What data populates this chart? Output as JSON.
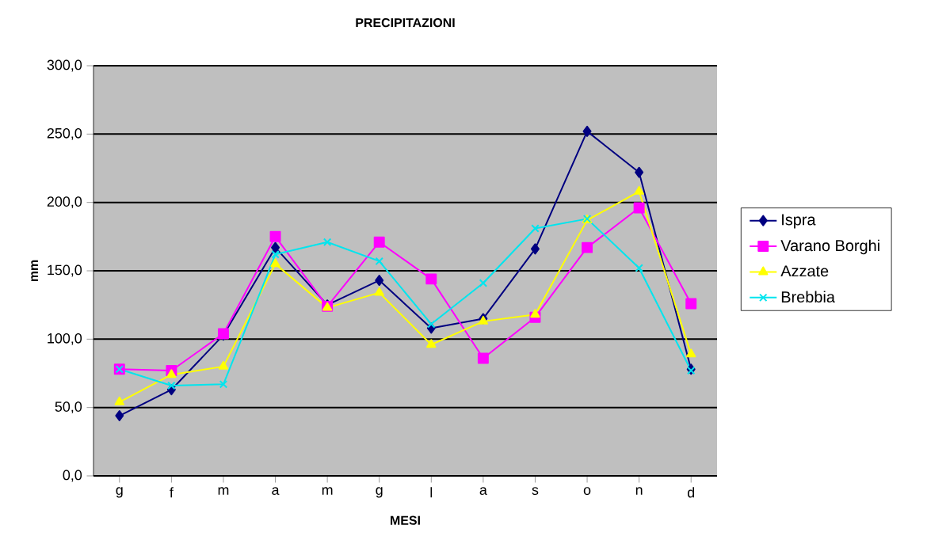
{
  "chart_data": {
    "type": "line",
    "title": "PRECIPITAZIONI",
    "xlabel": "MESI",
    "ylabel": "mm",
    "categories": [
      "g",
      "f",
      "m",
      "a",
      "m",
      "g",
      "l",
      "a",
      "s",
      "o",
      "n",
      "d"
    ],
    "series": [
      {
        "name": "Ispra",
        "color": "#000080",
        "marker": "diamond",
        "values": [
          44,
          63,
          103,
          167,
          125,
          143,
          108,
          115,
          166,
          252,
          222,
          78
        ]
      },
      {
        "name": "Varano Borghi",
        "color": "#ff00ff",
        "marker": "square",
        "values": [
          78,
          77,
          104,
          175,
          124,
          171,
          144,
          86,
          116,
          167,
          196,
          126
        ]
      },
      {
        "name": "Azzate",
        "color": "#ffff00",
        "marker": "triangle",
        "values": [
          54,
          74,
          80,
          155,
          123,
          134,
          96,
          113,
          118,
          187,
          208,
          89
        ]
      },
      {
        "name": "Brebbia",
        "color": "#00e5ee",
        "marker": "cross",
        "values": [
          78,
          66,
          67,
          162,
          171,
          157,
          111,
          141,
          181,
          188,
          152,
          77
        ]
      }
    ],
    "ylim": [
      0,
      300
    ],
    "yticks": [
      {
        "value": 0,
        "label": "0,0"
      },
      {
        "value": 50,
        "label": "50,0"
      },
      {
        "value": 100,
        "label": "100,0"
      },
      {
        "value": 150,
        "label": "150,0"
      },
      {
        "value": 200,
        "label": "200,0"
      },
      {
        "value": 250,
        "label": "250,0"
      },
      {
        "value": 300,
        "label": "300,0"
      }
    ],
    "grid": "y",
    "legend": "right",
    "line_style": "solid"
  }
}
